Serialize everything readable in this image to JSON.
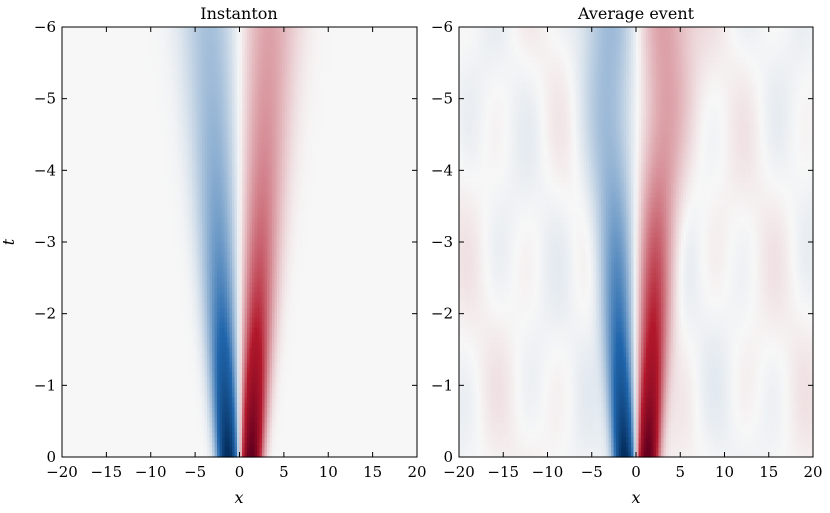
{
  "chart_data": [
    {
      "type": "heatmap",
      "title": "Instanton",
      "xlabel": "x",
      "ylabel": "t",
      "xlim": [
        -20,
        20
      ],
      "ylim": [
        0,
        -6
      ],
      "xticks": [
        -20,
        -15,
        -10,
        -5,
        0,
        5,
        10,
        15,
        20
      ],
      "yticks": [
        -6,
        -5,
        -4,
        -3,
        -2,
        -1,
        0
      ],
      "colormap": [
        "#053061",
        "#2166ac",
        "#f7f7f7",
        "#b2182b",
        "#67001f"
      ],
      "background": "#f7f7f7",
      "structure": "antisymmetric dipole in x: negative lobe at x<0, positive lobe at x>0, peak magnitude near t=0 at x≈±1.3, broadening and fading toward t=-6",
      "peak_x": 1.3,
      "noise": 0
    },
    {
      "type": "heatmap",
      "title": "Average event",
      "xlabel": "x",
      "ylabel": "",
      "xlim": [
        -20,
        20
      ],
      "ylim": [
        0,
        -6
      ],
      "xticks": [
        -20,
        -15,
        -10,
        -5,
        0,
        5,
        10,
        15,
        20
      ],
      "yticks": [
        -6,
        -5,
        -4,
        -3,
        -2,
        -1,
        0
      ],
      "colormap": [
        "#053061",
        "#2166ac",
        "#f7f7f7",
        "#b2182b",
        "#67001f"
      ],
      "background": "#f7f7f7",
      "structure": "same dipole structure as the instanton with faint background fluctuations",
      "peak_x": 1.3,
      "noise": 0.05
    }
  ]
}
